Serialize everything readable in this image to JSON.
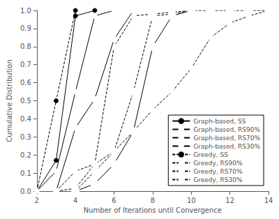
{
  "chart_data": {
    "type": "line",
    "xlabel": "Number of Iterations until Convergence",
    "ylabel": "Cumulative Distribution",
    "xlim": [
      2,
      14
    ],
    "ylim": [
      0,
      1.0
    ],
    "xticks": [
      2,
      4,
      6,
      8,
      10,
      12,
      14
    ],
    "yticks": [
      {
        "value": 0.0,
        "label": "0.0"
      },
      0.1,
      0.2,
      0.3,
      0.4,
      0.5,
      0.6,
      0.7,
      0.8,
      0.9,
      {
        "value": 1.0,
        "label": "1.0"
      }
    ],
    "grid": false,
    "legend": "lower right",
    "color": "#000000",
    "series": [
      {
        "name": "Graph-based, SS",
        "line_style": "solid",
        "marker": "filled_circle",
        "x": [
          2,
          3,
          4,
          5
        ],
        "values": [
          0.0,
          0.17,
          0.97,
          1.0
        ]
      },
      {
        "name": "Graph-based, RS90%",
        "line_style": "solid",
        "marker": "open_circle",
        "x": [
          2,
          3,
          4,
          5,
          6
        ],
        "values": [
          0.0,
          0.11,
          0.55,
          0.97,
          1.0
        ]
      },
      {
        "name": "Graph-based, RS70%",
        "line_style": "solid",
        "marker": "open_square",
        "x": [
          3,
          4,
          5,
          6,
          7
        ],
        "values": [
          0.0,
          0.35,
          0.51,
          0.84,
          1.0
        ]
      },
      {
        "name": "Graph-based, RS30%",
        "line_style": "solid",
        "marker": "large_open_circle",
        "x": [
          4,
          5,
          6,
          7,
          8,
          9,
          10
        ],
        "values": [
          0.0,
          0.04,
          0.15,
          0.33,
          0.8,
          0.97,
          1.0
        ]
      },
      {
        "name": "Greedy, SS",
        "line_style": "dashed",
        "marker": "filled_circle",
        "x": [
          2,
          3,
          4
        ],
        "values": [
          0.0,
          0.5,
          1.0
        ]
      },
      {
        "name": "Greedy, RS90%",
        "line_style": "dashed",
        "marker": "open_circle",
        "x": [
          3,
          4,
          5,
          6,
          7,
          8,
          9,
          10,
          11,
          12,
          13,
          14
        ],
        "values": [
          0.0,
          0.11,
          0.15,
          0.22,
          0.33,
          0.45,
          0.55,
          0.68,
          0.85,
          0.93,
          0.97,
          1.0
        ]
      },
      {
        "name": "Greedy, RS70%",
        "line_style": "dashed",
        "marker": "open_square",
        "x": [
          3,
          4,
          5,
          6,
          7,
          8,
          9,
          10
        ],
        "values": [
          0.0,
          0.015,
          0.15,
          0.8,
          0.97,
          0.98,
          0.99,
          1.0
        ]
      },
      {
        "name": "Greedy, RS30%",
        "line_style": "dashed",
        "marker": "large_open_circle",
        "x": [
          4,
          5,
          6,
          7,
          8,
          9,
          10,
          11,
          12,
          13,
          14
        ],
        "values": [
          0.0,
          0.11,
          0.22,
          0.55,
          0.97,
          0.98,
          1.0,
          1.0,
          1.0,
          1.0,
          1.0
        ]
      }
    ]
  }
}
